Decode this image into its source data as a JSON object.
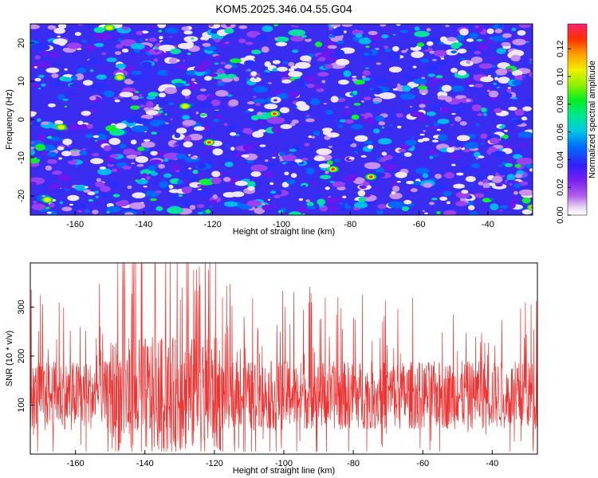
{
  "title": "KOM5.2025.346.04.55.G04",
  "chart_data": [
    {
      "type": "heatmap",
      "xlabel": "Height of straight line (km)",
      "ylabel": "Frequency (Hz)",
      "xlim": [
        -173,
        -27
      ],
      "ylim": [
        -25,
        25
      ],
      "xticks": [
        -160,
        -140,
        -120,
        -100,
        -80,
        -60,
        -40
      ],
      "yticks": [
        -20,
        -10,
        0,
        10,
        20
      ],
      "colorbar": {
        "label": "Normalized spectral amplitude",
        "range": [
          0.0,
          0.138
        ],
        "ticks": [
          0.0,
          0.02,
          0.04,
          0.06,
          0.08,
          0.1,
          0.12
        ],
        "tick_labels": [
          "0.00",
          "0.02",
          "0.04",
          "0.06",
          "0.08",
          "0.10",
          "0.12"
        ]
      },
      "hotspots": [
        {
          "x": -102,
          "y": 1.5,
          "value": 0.13
        },
        {
          "x": -121,
          "y": -6,
          "value": 0.12
        },
        {
          "x": -27,
          "y": -23,
          "value": 0.11
        },
        {
          "x": -85,
          "y": -13,
          "value": 0.1
        },
        {
          "x": -74,
          "y": -15,
          "value": 0.1
        },
        {
          "x": -164,
          "y": -2,
          "value": 0.09
        },
        {
          "x": -128,
          "y": 3.5,
          "value": 0.09
        },
        {
          "x": -147,
          "y": 11,
          "value": 0.08
        },
        {
          "x": -168,
          "y": -21,
          "value": 0.08
        },
        {
          "x": -150,
          "y": 24,
          "value": 0.08
        }
      ]
    },
    {
      "type": "line",
      "xlabel": "Height of straight line (km)",
      "ylabel": "SNR (10 * v/v)",
      "xlim": [
        -173,
        -27
      ],
      "ylim": [
        0,
        390
      ],
      "xticks": [
        -160,
        -140,
        -120,
        -100,
        -80,
        -60,
        -40
      ],
      "yticks": [
        100,
        200,
        300
      ],
      "series": [
        {
          "name": "SNR",
          "color": "#ee3333",
          "baseline": 120,
          "peak_region": [
            -150,
            -118
          ],
          "max": 390
        }
      ]
    }
  ]
}
